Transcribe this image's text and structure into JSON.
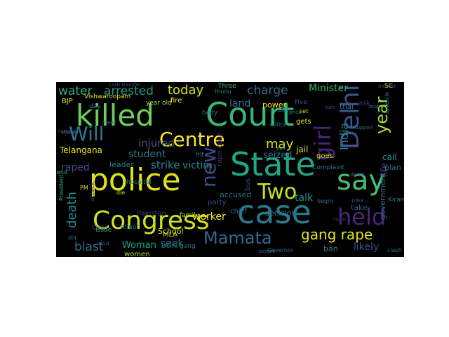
{
  "wordcloud": {
    "background": "#000000",
    "words": [
      {
        "text": "Court",
        "color": "#35b779"
      },
      {
        "text": "State",
        "color": "#21a685"
      },
      {
        "text": "police",
        "color": "#dde318"
      },
      {
        "text": "case",
        "color": "#2a788e"
      },
      {
        "text": "killed",
        "color": "#6ece58"
      },
      {
        "text": "say",
        "color": "#44bf70"
      },
      {
        "text": "Delhi",
        "color": "#3b528b"
      },
      {
        "text": "Congress",
        "color": "#d0e11c"
      },
      {
        "text": "Centre",
        "color": "#fde725"
      },
      {
        "text": "Two",
        "color": "#c8e020"
      },
      {
        "text": "held",
        "color": "#482878"
      },
      {
        "text": "Mamata",
        "color": "#31688e"
      },
      {
        "text": "Will",
        "color": "#2a788e"
      },
      {
        "text": "new",
        "color": "#3e4989"
      },
      {
        "text": "girl",
        "color": "#482475"
      },
      {
        "text": "gang rape",
        "color": "#e5e419"
      },
      {
        "text": "death",
        "color": "#238a8d"
      },
      {
        "text": "year",
        "color": "#a8db34"
      },
      {
        "text": "India",
        "color": "#26828e"
      },
      {
        "text": "today",
        "color": "#d8e219"
      },
      {
        "text": "charge",
        "color": "#2c728e"
      },
      {
        "text": "water",
        "color": "#29af7f"
      },
      {
        "text": "arrested",
        "color": "#1f9a8a"
      },
      {
        "text": "injured",
        "color": "#3b528b"
      },
      {
        "text": "may",
        "color": "#dde318"
      },
      {
        "text": "land",
        "color": "#2f6c8e"
      },
      {
        "text": "blast",
        "color": "#2c728e"
      },
      {
        "text": "strike",
        "color": "#25848e"
      },
      {
        "text": "student",
        "color": "#2a788e"
      },
      {
        "text": "victim",
        "color": "#23898e"
      },
      {
        "text": "talk",
        "color": "#21918c"
      },
      {
        "text": "seized",
        "color": "#2d708e"
      },
      {
        "text": "Minister",
        "color": "#35b779"
      },
      {
        "text": "worker",
        "color": "#fde725"
      },
      {
        "text": "raped",
        "color": "#3e4989"
      },
      {
        "text": "seek",
        "color": "#2a788e"
      },
      {
        "text": "Woman",
        "color": "#1fa187"
      },
      {
        "text": "likely",
        "color": "#3b528b"
      },
      {
        "text": "life",
        "color": "#414487"
      },
      {
        "text": "Telangana",
        "color": "#e5e419"
      },
      {
        "text": "women",
        "color": "#b5de2b"
      },
      {
        "text": "leader",
        "color": "#26828e"
      },
      {
        "text": "School",
        "color": "#d8e219"
      },
      {
        "text": "decision",
        "color": "#2c728e"
      },
      {
        "text": "call",
        "color": "#21918c"
      },
      {
        "text": "plan",
        "color": "#31688e"
      },
      {
        "text": "take",
        "color": "#3b528b"
      },
      {
        "text": "power",
        "color": "#fde725"
      },
      {
        "text": "jail",
        "color": "#dde318"
      },
      {
        "text": "accused",
        "color": "#2a788e"
      },
      {
        "text": "party",
        "color": "#3e4989"
      },
      {
        "text": "chief",
        "color": "#31688e"
      },
      {
        "text": "family",
        "color": "#b5de2b"
      },
      {
        "text": "minor",
        "color": "#2c728e"
      },
      {
        "text": "issue",
        "color": "#35b779"
      },
      {
        "text": "ban",
        "color": "#27808e"
      },
      {
        "text": "Pakistan",
        "color": "#433e85"
      },
      {
        "text": "hit",
        "color": "#287c8e"
      },
      {
        "text": "fire",
        "color": "#fde725"
      },
      {
        "text": "rape case",
        "color": "#482475"
      },
      {
        "text": "bus",
        "color": "#3e4989"
      },
      {
        "text": "BJP",
        "color": "#dde318"
      },
      {
        "text": "year old",
        "color": "#b5de2b"
      },
      {
        "text": "hospital",
        "color": "#2a788e"
      },
      {
        "text": "Hindu",
        "color": "#26828e"
      },
      {
        "text": "Three",
        "color": "#35b779"
      },
      {
        "text": "SC",
        "color": "#dde318"
      },
      {
        "text": "MLA",
        "color": "#c2df23"
      },
      {
        "text": "government",
        "color": "#31688e"
      },
      {
        "text": "Vishwaroopam",
        "color": "#d8e219"
      },
      {
        "text": "Kiran",
        "color": "#2a788e"
      },
      {
        "text": "PM",
        "color": "#dde318"
      },
      {
        "text": "China",
        "color": "#3b528b"
      },
      {
        "text": "attack",
        "color": "#482878"
      },
      {
        "text": "Delhi gang",
        "color": "#2c728e"
      },
      {
        "text": "visa",
        "color": "#414487"
      },
      {
        "text": "President",
        "color": "#29af7f"
      },
      {
        "text": "end",
        "color": "#35b779"
      },
      {
        "text": "die",
        "color": "#d0e11c"
      },
      {
        "text": "body",
        "color": "#2c728e"
      },
      {
        "text": "goes",
        "color": "#dde318"
      },
      {
        "text": "Compiaint",
        "color": "#2a788e"
      },
      {
        "text": "dead",
        "color": "#3b528b"
      },
      {
        "text": "notice",
        "color": "#2a788e"
      },
      {
        "text": "Governor",
        "color": "#31688e"
      },
      {
        "text": "plea",
        "color": "#3e4989"
      },
      {
        "text": "rape",
        "color": "#482475"
      },
      {
        "text": "begin",
        "color": "#2c728e"
      },
      {
        "text": "trial",
        "color": "#26828e"
      },
      {
        "text": "day",
        "color": "#2a788e"
      },
      {
        "text": "ask",
        "color": "#482878"
      },
      {
        "text": "gets",
        "color": "#dde318"
      },
      {
        "text": "juvenile",
        "color": "#2a788e"
      },
      {
        "text": "meet",
        "color": "#31688e"
      },
      {
        "text": "cash transfer",
        "color": "#3b528b"
      },
      {
        "text": "stir",
        "color": "#26828e"
      },
      {
        "text": "clash",
        "color": "#2a788e"
      },
      {
        "text": "Mother",
        "color": "#31688e"
      },
      {
        "text": "national",
        "color": "#3e4989"
      },
      {
        "text": "poll",
        "color": "#35b779"
      },
      {
        "text": "Five",
        "color": "#3b528b"
      },
      {
        "text": "set",
        "color": "#c2df23"
      },
      {
        "text": "Lok",
        "color": "#2c728e"
      },
      {
        "text": "support",
        "color": "#2a788e"
      },
      {
        "text": "people",
        "color": "#31688e"
      },
      {
        "text": "turn",
        "color": "#3b528b"
      },
      {
        "text": "price",
        "color": "#26828e"
      },
      {
        "text": "mob",
        "color": "#2a788e"
      },
      {
        "text": "murder",
        "color": "#3e4989"
      }
    ]
  }
}
